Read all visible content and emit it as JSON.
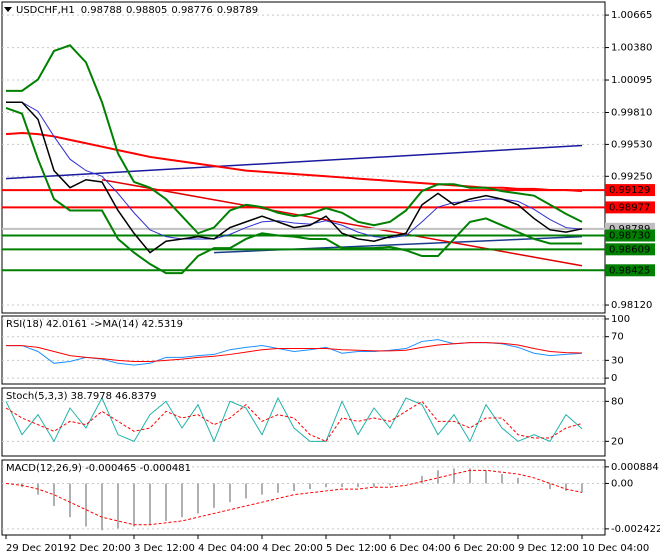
{
  "chart_data": [
    {
      "type": "line",
      "symbol": "USDCHF,H1",
      "quote": [
        0.98788,
        0.98805,
        0.98776,
        0.98789
      ],
      "ylim": [
        0.9805,
        1.0078
      ],
      "yticks": [
        1.00665,
        {
          "value": 1.0038,
          "label": "1.00380"
        },
        1.00095,
        {
          "value": 0.9981,
          "label": "0.99810"
        },
        {
          "value": 0.9953,
          "label": "0.99530"
        },
        {
          "value": 0.9925,
          "label": "0.99250"
        },
        {
          "value": 0.9812,
          "label": "0.98120"
        }
      ],
      "series": [
        {
          "color": "#ff0000",
          "width": 2,
          "values": [
            0.9962,
            0.9963,
            0.9962,
            0.996,
            0.9957,
            0.9954,
            0.9951,
            0.9948,
            0.9945,
            0.9942,
            0.994,
            0.9938,
            0.9936,
            0.9934,
            0.9932,
            0.993,
            0.9929,
            0.9928,
            0.9927,
            0.9926,
            0.9925,
            0.9924,
            0.9923,
            0.9922,
            0.9921,
            0.992,
            0.9919,
            0.9918,
            0.9917,
            0.9916,
            0.9915,
            0.9915,
            0.9914,
            0.9914,
            0.9913,
            0.9913,
            0.9912
          ]
        },
        {
          "color": "#008000",
          "width": 2,
          "values": [
            1.0,
            1.0,
            1.001,
            1.0035,
            1.004,
            1.0025,
            0.999,
            0.9945,
            0.992,
            0.9915,
            0.9905,
            0.989,
            0.9875,
            0.988,
            0.9895,
            0.99,
            0.9898,
            0.9893,
            0.989,
            0.9892,
            0.9897,
            0.9893,
            0.9885,
            0.9882,
            0.9885,
            0.9895,
            0.9912,
            0.9918,
            0.9918,
            0.9915,
            0.9915,
            0.9912,
            0.991,
            0.9908,
            0.99,
            0.9892,
            0.9885
          ]
        },
        {
          "color": "#008000",
          "width": 2,
          "values": [
            0.9985,
            0.998,
            0.994,
            0.9905,
            0.9895,
            0.9895,
            0.9895,
            0.987,
            0.9858,
            0.9848,
            0.984,
            0.984,
            0.9855,
            0.9862,
            0.9862,
            0.987,
            0.9875,
            0.9873,
            0.9872,
            0.987,
            0.987,
            0.9862,
            0.9862,
            0.9862,
            0.9863,
            0.986,
            0.9855,
            0.9855,
            0.987,
            0.9885,
            0.9888,
            0.9882,
            0.9876,
            0.987,
            0.9866,
            0.9866,
            0.9866
          ]
        },
        {
          "color": "#3030d0",
          "width": 1,
          "values": [
            0.999,
            0.999,
            0.9982,
            0.996,
            0.994,
            0.993,
            0.9925,
            0.991,
            0.9893,
            0.9878,
            0.9872,
            0.987,
            0.987,
            0.987,
            0.9874,
            0.988,
            0.9885,
            0.9886,
            0.9884,
            0.9883,
            0.9886,
            0.9882,
            0.9876,
            0.9872,
            0.9871,
            0.9873,
            0.9885,
            0.9898,
            0.9902,
            0.9903,
            0.9905,
            0.9905,
            0.9903,
            0.9896,
            0.9887,
            0.988,
            0.98785
          ]
        },
        {
          "color": "#000000",
          "width": 1.5,
          "values": [
            0.999,
            0.999,
            0.9975,
            0.993,
            0.9915,
            0.9922,
            0.992,
            0.9895,
            0.9875,
            0.9858,
            0.9868,
            0.987,
            0.9872,
            0.987,
            0.988,
            0.9885,
            0.989,
            0.9885,
            0.988,
            0.9882,
            0.989,
            0.9875,
            0.987,
            0.9868,
            0.9872,
            0.9875,
            0.99,
            0.991,
            0.99,
            0.9905,
            0.9908,
            0.9905,
            0.99,
            0.9888,
            0.9878,
            0.9876,
            0.98789
          ]
        }
      ],
      "trendlines": [
        {
          "color": "#1a1aa0",
          "from": [
            0,
            0.9923
          ],
          "to": [
            36,
            0.9952
          ]
        },
        {
          "color": "#1a3a8a",
          "from": [
            13,
            0.9858
          ],
          "to": [
            36,
            0.9872
          ]
        },
        {
          "color": "#e00000",
          "from": [
            6,
            0.9922
          ],
          "to": [
            36,
            0.98465
          ]
        }
      ],
      "levels": [
        {
          "value": 0.99129,
          "color": "#ff0000"
        },
        {
          "value": 0.98977,
          "color": "#ff0000"
        },
        {
          "value": 0.98789,
          "color": "#c0c0c0"
        },
        {
          "value": 0.9873,
          "label": "0.98730",
          "color": "#008000"
        },
        {
          "value": 0.98609,
          "color": "#008000"
        },
        {
          "value": 0.98425,
          "color": "#008000"
        }
      ]
    },
    {
      "type": "line",
      "label": "RSI(18) 42.0161 ->MA(14) 42.5319",
      "ylim": [
        -10,
        105
      ],
      "yticks": [
        100,
        70,
        30,
        0
      ],
      "series": [
        {
          "color": "#1e90ff",
          "width": 1,
          "values": [
            55,
            55,
            45,
            25,
            28,
            35,
            32,
            25,
            22,
            25,
            35,
            35,
            38,
            40,
            48,
            52,
            55,
            50,
            45,
            48,
            52,
            42,
            45,
            45,
            47,
            50,
            62,
            65,
            58,
            60,
            60,
            58,
            52,
            42,
            38,
            40,
            42
          ]
        },
        {
          "color": "#ff0000",
          "width": 1,
          "values": [
            55,
            55,
            52,
            45,
            38,
            35,
            33,
            30,
            28,
            28,
            30,
            32,
            35,
            37,
            40,
            44,
            48,
            50,
            50,
            50,
            50,
            48,
            47,
            46,
            46,
            47,
            52,
            56,
            58,
            60,
            60,
            59,
            56,
            50,
            45,
            43,
            42.5
          ]
        }
      ]
    },
    {
      "type": "line",
      "label": "Stoch(5,3,3) 38.7978 46.8379",
      "ylim": [
        -2,
        100
      ],
      "yticks": [
        80,
        20
      ],
      "series": [
        {
          "color": "#20b2aa",
          "width": 1,
          "values": [
            80,
            30,
            60,
            20,
            70,
            40,
            85,
            30,
            20,
            60,
            80,
            40,
            75,
            20,
            80,
            70,
            30,
            85,
            40,
            20,
            20,
            80,
            30,
            70,
            40,
            85,
            75,
            30,
            60,
            20,
            75,
            40,
            20,
            30,
            20,
            60,
            38.8
          ]
        },
        {
          "color": "#ff0000",
          "width": 1,
          "style": "dotted",
          "values": [
            70,
            55,
            45,
            35,
            50,
            45,
            65,
            50,
            35,
            40,
            65,
            55,
            60,
            45,
            55,
            75,
            50,
            60,
            55,
            30,
            20,
            55,
            50,
            55,
            50,
            65,
            80,
            50,
            50,
            40,
            55,
            55,
            30,
            25,
            25,
            40,
            46.8
          ]
        }
      ]
    },
    {
      "type": "bar",
      "label": "MACD(12,26,9) -0.000465 -0.000481",
      "ylim": [
        -0.00275,
        0.00125
      ],
      "yticks": [
        0.000884,
        {
          "value": 0,
          "label": "0.00"
        },
        -0.002422
      ],
      "categories": [
        "29 Dec 2019",
        null,
        null,
        null,
        "2 Dec 20:00",
        null,
        null,
        null,
        "3 Dec 12:00",
        null,
        null,
        null,
        "4 Dec 04:00",
        null,
        null,
        null,
        "4 Dec 20:00",
        null,
        null,
        null,
        "5 Dec 12:00",
        null,
        null,
        null,
        "6 Dec 04:00",
        null,
        null,
        null,
        "6 Dec 20:00",
        null,
        null,
        null,
        "9 Dec 12:00",
        null,
        null,
        null,
        "10 Dec 04:00"
      ],
      "series": [
        {
          "color": "#b0b0b0",
          "style": "bars",
          "values": [
            0,
            -0.0002,
            -0.0006,
            -0.0012,
            -0.0018,
            -0.0023,
            -0.0025,
            -0.0024,
            -0.0023,
            -0.0022,
            -0.002,
            -0.0018,
            -0.0016,
            -0.0013,
            -0.001,
            -0.0008,
            -0.0006,
            -0.0005,
            -0.0004,
            -0.0003,
            -0.0002,
            -0.0002,
            -0.0002,
            -0.0002,
            -0.0001,
            0,
            0.0004,
            0.0007,
            0.0008,
            0.0008,
            0.0007,
            0.0005,
            0.0003,
            0,
            -0.0003,
            -0.0004,
            -0.000465
          ]
        },
        {
          "color": "#ff0000",
          "width": 1,
          "style": "dotted",
          "values": [
            0,
            -0.0001,
            -0.0003,
            -0.0006,
            -0.001,
            -0.0014,
            -0.0018,
            -0.002,
            -0.0022,
            -0.0022,
            -0.0021,
            -0.002,
            -0.0018,
            -0.0016,
            -0.0014,
            -0.0012,
            -0.001,
            -0.0008,
            -0.0006,
            -0.0005,
            -0.0004,
            -0.0003,
            -0.0003,
            -0.0002,
            -0.0002,
            -0.0001,
            0.0001,
            0.0003,
            0.0005,
            0.0007,
            0.0007,
            0.0006,
            0.0005,
            0.0003,
            0,
            -0.0003,
            -0.000481
          ]
        }
      ]
    }
  ]
}
